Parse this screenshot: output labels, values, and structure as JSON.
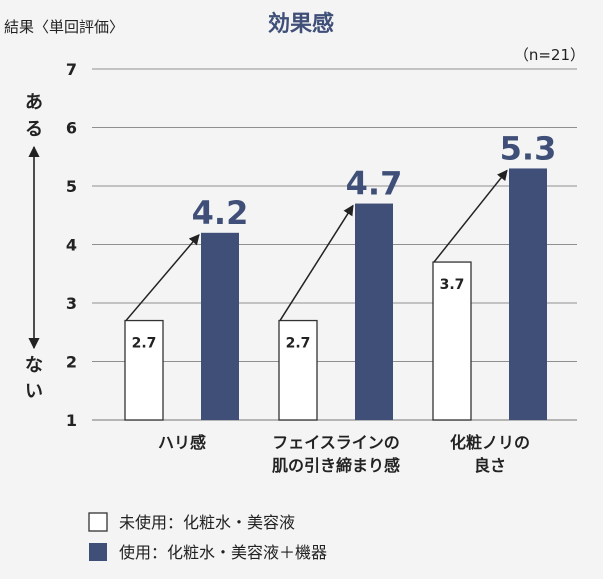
{
  "chart_data": {
    "type": "bar",
    "title": "効果感",
    "unit_label": "結果〈単回評価〉",
    "sample_size": "（n=21）",
    "axis_word_high": "ある",
    "axis_word_low": "ない",
    "ylim": [
      1,
      7
    ],
    "yticks": [
      1,
      2,
      3,
      4,
      5,
      6,
      7
    ],
    "categories": [
      [
        "ハリ感"
      ],
      [
        "フェイスラインの",
        "肌の引き締まり感"
      ],
      [
        "化粧ノリの",
        "良さ"
      ]
    ],
    "series": [
      {
        "name": "未使用：化粧水・美容液",
        "values": [
          2.7,
          2.7,
          3.7
        ],
        "color": "#ffffff",
        "stroke": "#333333"
      },
      {
        "name": "使用：化粧水・美容液＋機器",
        "values": [
          4.2,
          4.7,
          5.3
        ],
        "color": "#3f4f78"
      }
    ],
    "arrows": true,
    "legend": "bottom-left",
    "grid": false
  }
}
